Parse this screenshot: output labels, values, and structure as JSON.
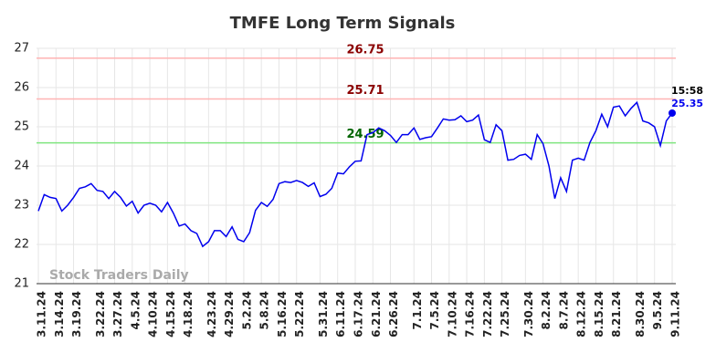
{
  "chart_data": {
    "type": "line",
    "title": "TMFE Long Term Signals",
    "watermark": "Stock Traders Daily",
    "color": "#0000ee",
    "categories": [
      "3.11.24",
      null,
      null,
      "3.14.24",
      null,
      null,
      "3.19.24",
      null,
      null,
      null,
      "3.22.24",
      null,
      null,
      "3.27.24",
      null,
      null,
      "4.5.24",
      null,
      null,
      "4.10.24",
      null,
      null,
      "4.15.24",
      null,
      null,
      "4.18.24",
      null,
      null,
      null,
      "4.23.24",
      null,
      null,
      "4.29.24",
      null,
      null,
      "5.2.24",
      null,
      null,
      "5.8.24",
      null,
      null,
      "5.16.24",
      null,
      null,
      "5.22.24",
      null,
      null,
      null,
      "5.31.24",
      null,
      null,
      "6.11.24",
      null,
      null,
      "6.17.24",
      null,
      null,
      "6.21.24",
      null,
      null,
      "6.26.24",
      null,
      null,
      null,
      "7.1.24",
      null,
      null,
      "7.5.24",
      null,
      null,
      "7.10.24",
      null,
      null,
      "7.16.24",
      null,
      null,
      "7.22.24",
      null,
      null,
      "7.25.24",
      null,
      null,
      null,
      "7.30.24",
      null,
      null,
      "8.2.24",
      null,
      null,
      "8.7.24",
      null,
      null,
      "8.12.24",
      null,
      null,
      "8.15.24",
      null,
      null,
      "8.21.24",
      null,
      null,
      null,
      "8.30.24",
      null,
      null,
      "9.5.24",
      null,
      null,
      "9.11.24"
    ],
    "values": [
      22.85,
      23.27,
      23.2,
      23.17,
      22.85,
      23.0,
      23.2,
      23.43,
      23.47,
      23.55,
      23.38,
      23.35,
      23.17,
      23.35,
      23.2,
      22.98,
      23.1,
      22.8,
      23.0,
      23.05,
      23.0,
      22.83,
      23.07,
      22.8,
      22.47,
      22.52,
      22.35,
      22.28,
      21.95,
      22.07,
      22.35,
      22.35,
      22.2,
      22.45,
      22.13,
      22.07,
      22.3,
      22.87,
      23.07,
      22.97,
      23.15,
      23.55,
      23.6,
      23.58,
      23.63,
      23.58,
      23.48,
      23.57,
      23.22,
      23.28,
      23.43,
      23.82,
      23.8,
      23.98,
      24.12,
      24.13,
      24.8,
      24.85,
      24.97,
      24.9,
      24.78,
      24.6,
      24.8,
      24.8,
      24.97,
      24.68,
      24.72,
      24.75,
      24.97,
      25.2,
      25.17,
      25.18,
      25.28,
      25.13,
      25.17,
      25.3,
      24.67,
      24.6,
      25.05,
      24.9,
      24.15,
      24.17,
      24.27,
      24.3,
      24.17,
      24.8,
      24.57,
      24.0,
      23.17,
      23.7,
      23.35,
      24.15,
      24.2,
      24.15,
      24.6,
      24.9,
      25.32,
      25.0,
      25.5,
      25.53,
      25.28,
      25.47,
      25.62,
      25.15,
      25.1,
      25.0,
      24.52,
      25.15,
      25.35
    ],
    "last_time": "15:58",
    "levels": [
      {
        "value": 26.75,
        "color": "#ffb3b3",
        "label_color": "#8b0000"
      },
      {
        "value": 25.71,
        "color": "#ffb3b3",
        "label_color": "#8b0000"
      },
      {
        "value": 24.59,
        "color": "#7fe57f",
        "label_color": "#006400"
      }
    ],
    "ylim": [
      21,
      27
    ],
    "yticks": [
      21,
      22,
      23,
      24,
      25,
      26,
      27
    ],
    "grid": true
  }
}
